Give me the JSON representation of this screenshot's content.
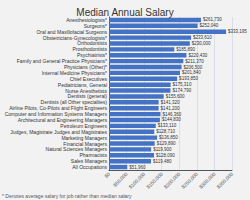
{
  "chart_data": {
    "type": "bar",
    "orientation": "horizontal",
    "title": "Median Annual Salary",
    "categories": [
      "Anesthesiologists*",
      "Surgeons*",
      "Oral and Maxillofacial Surgeons",
      "Obstetricians-Gynecologists*",
      "Orthodontists",
      "Prosthodontists",
      "Psychiatrists*",
      "Family and General Practice Physicians*",
      "Physicians (Other)*",
      "Internal Medicine Physicians*",
      "Chief Executives",
      "Pediatricians, General",
      "Nurse Anesthetists",
      "Dentists (general)",
      "Dentists (all Other specialties)",
      "Airline Pilots, Co-Pilots and Flight Engineers",
      "Computer and Information Systems Managers",
      "Architectural and Engineering Managers",
      "Petroleum Engineers",
      "Judges, Magistrate Judges and Magistrates",
      "Marketing Managers",
      "Financial Managers",
      "Natural Sciences Managers",
      "Pharmacists",
      "Sales Managers",
      "All Occupations"
    ],
    "values": [
      261730,
      252040,
      333195,
      233610,
      230000,
      185890,
      220430,
      211370,
      206500,
      201840,
      193850,
      175310,
      174790,
      155600,
      141320,
      141200,
      146360,
      144830,
      133110,
      128710,
      136850,
      129890,
      119900,
      128090,
      119480,
      51960
    ],
    "value_labels": [
      "$261,730",
      "$252,040",
      "$333,195",
      "$233,610",
      "$230,000",
      "$185,890",
      "$220,430",
      "$211,370",
      "$206,500",
      "$201,840",
      "$193,850",
      "$175,310",
      "$174,790",
      "$155,600",
      "$141,320",
      "$141,200",
      "$146,360",
      "$144,830",
      "$133,110",
      "$128,710",
      "$136,850",
      "$129,890",
      "$119,900",
      "$128,090",
      "$119,480",
      "$51,960"
    ],
    "data_labels": true,
    "color": "#4472C4",
    "xlim": [
      0,
      350000
    ],
    "xticks": [
      {
        "value": 0,
        "label": "$0"
      },
      {
        "value": 50000,
        "label": "$50,000"
      },
      {
        "value": 100000,
        "label": "$100,000"
      },
      {
        "value": 150000,
        "label": "$150,000"
      },
      {
        "value": 200000,
        "label": "$200,000"
      },
      {
        "value": 250000,
        "label": "$250,000"
      },
      {
        "value": 300000,
        "label": "$300,000"
      },
      {
        "value": 350000,
        "label": "$350,000"
      }
    ],
    "grid": true,
    "annotations": [
      "* Denotes average salary for job rather than median salary"
    ]
  }
}
